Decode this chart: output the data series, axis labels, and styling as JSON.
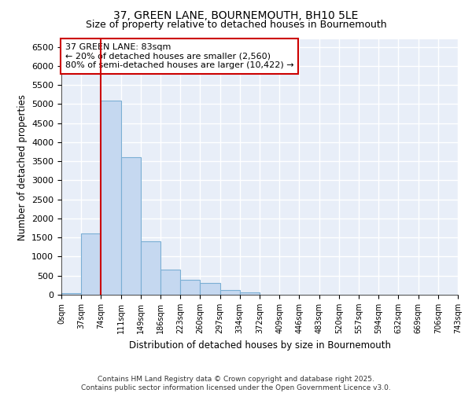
{
  "title1": "37, GREEN LANE, BOURNEMOUTH, BH10 5LE",
  "title2": "Size of property relative to detached houses in Bournemouth",
  "xlabel": "Distribution of detached houses by size in Bournemouth",
  "ylabel": "Number of detached properties",
  "bar_values": [
    50,
    1600,
    5100,
    3600,
    1400,
    650,
    400,
    300,
    130,
    70,
    0,
    0,
    0,
    0,
    0,
    0,
    0,
    0,
    0,
    0
  ],
  "bar_labels": [
    "0sqm",
    "37sqm",
    "74sqm",
    "111sqm",
    "149sqm",
    "186sqm",
    "223sqm",
    "260sqm",
    "297sqm",
    "334sqm",
    "372sqm",
    "409sqm",
    "446sqm",
    "483sqm",
    "520sqm",
    "557sqm",
    "594sqm",
    "632sqm",
    "669sqm",
    "706sqm",
    "743sqm"
  ],
  "bar_color": "#c5d8f0",
  "bar_edge_color": "#7bafd4",
  "vline_color": "#cc0000",
  "annotation_text": "37 GREEN LANE: 83sqm\n← 20% of detached houses are smaller (2,560)\n80% of semi-detached houses are larger (10,422) →",
  "annotation_box_color": "#cc0000",
  "ylim": [
    0,
    6700
  ],
  "yticks": [
    0,
    500,
    1000,
    1500,
    2000,
    2500,
    3000,
    3500,
    4000,
    4500,
    5000,
    5500,
    6000,
    6500
  ],
  "background_color": "#e8eef8",
  "grid_color": "#ffffff",
  "footer_text": "Contains HM Land Registry data © Crown copyright and database right 2025.\nContains public sector information licensed under the Open Government Licence v3.0.",
  "title1_fontsize": 10,
  "title2_fontsize": 9,
  "annotation_fontsize": 8,
  "footer_fontsize": 6.5
}
